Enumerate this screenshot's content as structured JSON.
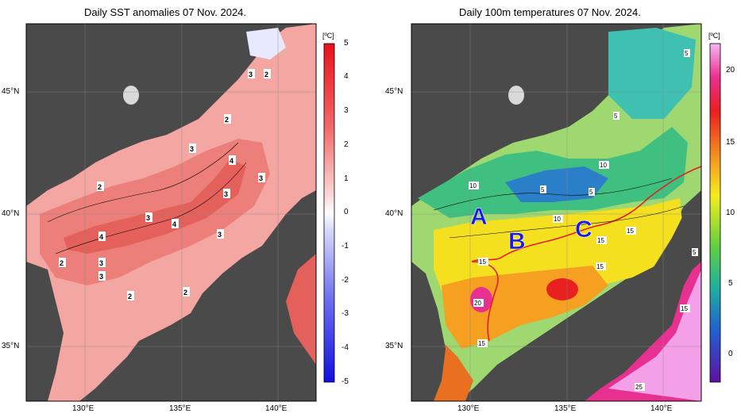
{
  "left": {
    "title": "Daily SST anomalies 07 Nov. 2024.",
    "unit": "[ºC]",
    "colorbar_ticks": [
      "5",
      "4",
      "3",
      "2",
      "1",
      "0",
      "-1",
      "-2",
      "-3",
      "-4",
      "-5"
    ],
    "contour_labels": [
      "3",
      "2",
      "2",
      "3",
      "4",
      "3",
      "2",
      "3",
      "3",
      "4",
      "4",
      "3",
      "2",
      "3",
      "3",
      "2",
      "2"
    ],
    "lat_labels": [
      "45°N",
      "40°N",
      "35°N"
    ],
    "lon_labels": [
      "130°E",
      "135°E",
      "140°E"
    ]
  },
  "right": {
    "title": "Daily 100m temperatures 07 Nov. 2024.",
    "unit": "[ºC]",
    "colorbar_ticks": [
      "20",
      "15",
      "10",
      "5",
      "0"
    ],
    "contour_labels": [
      "5",
      "5",
      "10",
      "10",
      "5",
      "5",
      "10",
      "15",
      "15",
      "15",
      "15",
      "20",
      "15",
      "5",
      "15",
      "25"
    ],
    "letters": [
      "A",
      "B",
      "C"
    ],
    "lat_labels": [
      "45°N",
      "40°N",
      "35°N"
    ],
    "lon_labels": [
      "130°E",
      "135°E",
      "140°E"
    ]
  },
  "colors": {
    "land": "#4a4a4a",
    "front_line": "#e02020",
    "letter_color": "#1a1adf"
  }
}
